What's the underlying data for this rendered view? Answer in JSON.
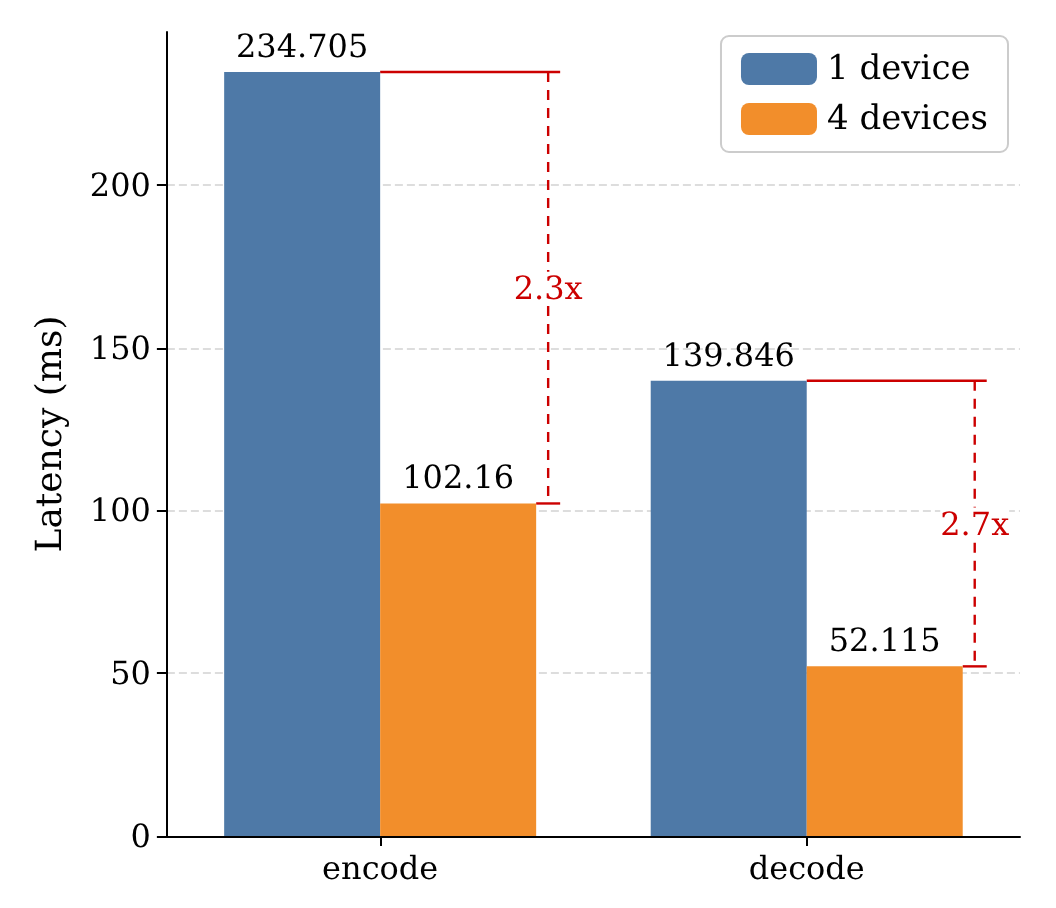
{
  "chart_data": {
    "type": "bar",
    "ylabel": "Latency (ms)",
    "categories": [
      "encode",
      "decode"
    ],
    "series": [
      {
        "name": "1 device",
        "color": "#4e79a7",
        "values": [
          234.705,
          139.846
        ]
      },
      {
        "name": "4 devices",
        "color": "#f28e2b",
        "values": [
          102.16,
          52.115
        ]
      }
    ],
    "ylim": [
      0,
      247
    ],
    "yticks": [
      0,
      50,
      100,
      150,
      200
    ],
    "grid": "y",
    "legend": "top right",
    "data_labels": true,
    "annotations": [
      "2.3x",
      "2.7x"
    ]
  }
}
